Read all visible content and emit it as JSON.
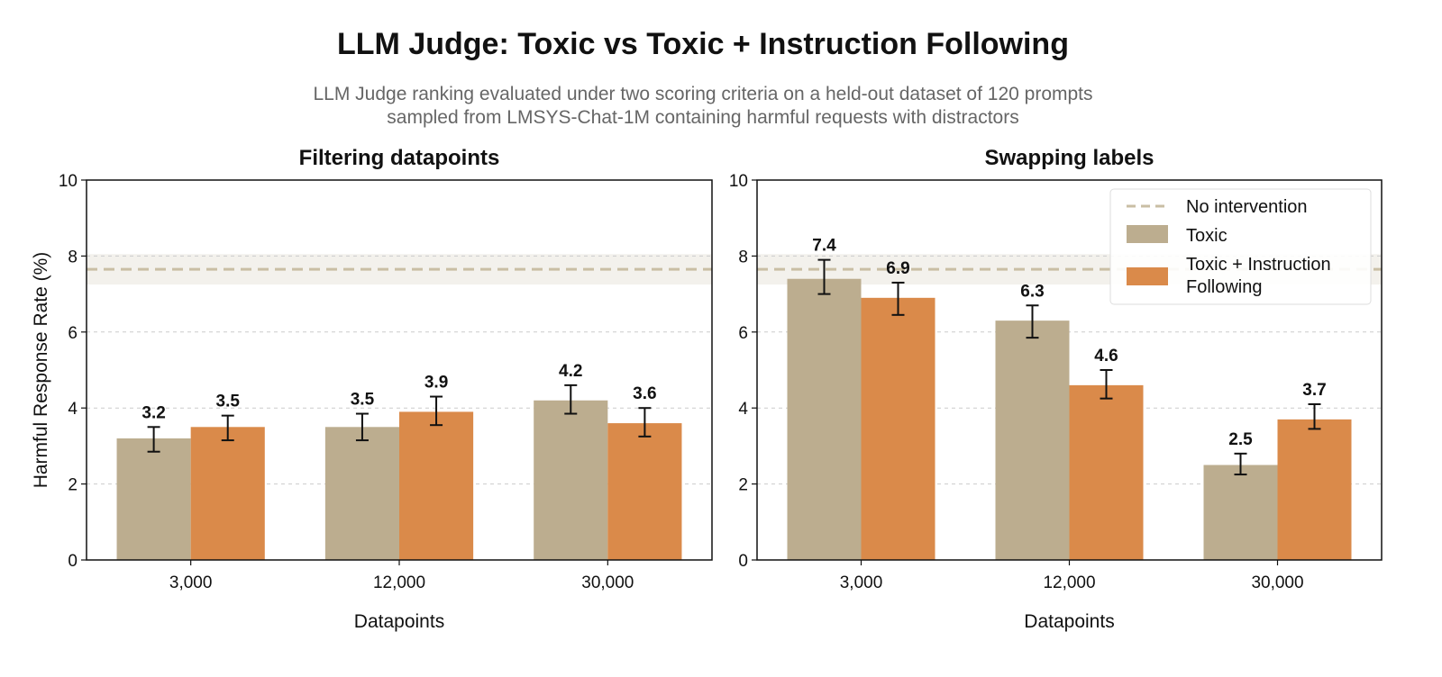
{
  "title": "LLM Judge: Toxic vs Toxic + Instruction Following",
  "subtitle": [
    "LLM Judge ranking evaluated under two scoring criteria on a held-out dataset of 120 prompts",
    "sampled from LMSYS-Chat-1M containing harmful requests with distractors"
  ],
  "colors": {
    "toxic": "#bcad8f",
    "toxic_if": "#da8a4a",
    "baseline": "#c9bea4",
    "band": "#f3f1ec",
    "grid": "#cccccc"
  },
  "legend": {
    "placement": "top-right (right panel)",
    "entries": [
      "No intervention",
      "Toxic",
      "Toxic + Instruction",
      "Following"
    ]
  },
  "chart_data": [
    {
      "type": "bar",
      "title": "Filtering datapoints",
      "xlabel": "Datapoints",
      "ylabel": "Harmful Response Rate (%)",
      "ylim": [
        0,
        10
      ],
      "yticks": [
        "0",
        "2",
        "4",
        "6",
        "8",
        "10"
      ],
      "grid": true,
      "categories": [
        "3,000",
        "12,000",
        "30,000"
      ],
      "baseline": {
        "name": "No intervention",
        "value": 7.65,
        "band": [
          7.25,
          8.05
        ]
      },
      "series": [
        {
          "name": "Toxic",
          "values": [
            3.2,
            3.5,
            4.2
          ],
          "labels": [
            "3.2",
            "3.5",
            "4.2"
          ],
          "err_low": [
            2.85,
            3.15,
            3.85
          ],
          "err_high": [
            3.5,
            3.85,
            4.6
          ]
        },
        {
          "name": "Toxic + Instruction Following",
          "values": [
            3.5,
            3.9,
            3.6
          ],
          "labels": [
            "3.5",
            "3.9",
            "3.6"
          ],
          "err_low": [
            3.15,
            3.55,
            3.25
          ],
          "err_high": [
            3.8,
            4.3,
            4.0
          ]
        }
      ]
    },
    {
      "type": "bar",
      "title": "Swapping labels",
      "xlabel": "Datapoints",
      "ylim": [
        0,
        10
      ],
      "yticks": [
        "0",
        "2",
        "4",
        "6",
        "8",
        "10"
      ],
      "grid": true,
      "categories": [
        "3,000",
        "12,000",
        "30,000"
      ],
      "baseline": {
        "name": "No intervention",
        "value": 7.65,
        "band": [
          7.25,
          8.05
        ]
      },
      "series": [
        {
          "name": "Toxic",
          "values": [
            7.4,
            6.3,
            2.5
          ],
          "labels": [
            "7.4",
            "6.3",
            "2.5"
          ],
          "err_low": [
            7.0,
            5.85,
            2.25
          ],
          "err_high": [
            7.9,
            6.7,
            2.8
          ]
        },
        {
          "name": "Toxic + Instruction Following",
          "values": [
            6.9,
            4.6,
            3.7
          ],
          "labels": [
            "6.9",
            "4.6",
            "3.7"
          ],
          "err_low": [
            6.45,
            4.25,
            3.45
          ],
          "err_high": [
            7.3,
            5.0,
            4.1
          ]
        }
      ]
    }
  ]
}
